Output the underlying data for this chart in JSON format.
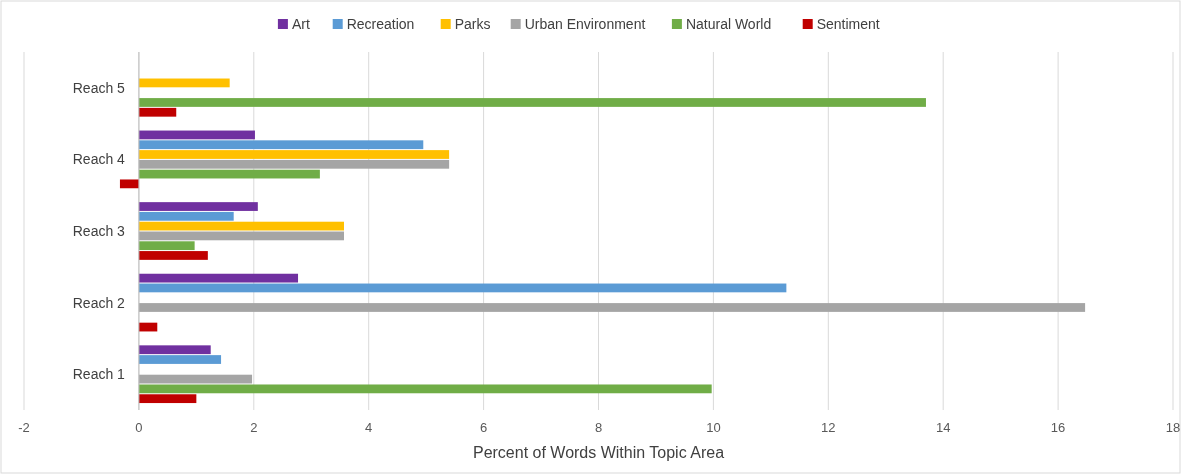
{
  "chart_data": {
    "type": "bar",
    "orientation": "horizontal",
    "xlabel": "Percent of Words Within Topic Area",
    "categories": [
      "Reach 5",
      "Reach 4",
      "Reach 3",
      "Reach 2",
      "Reach 1"
    ],
    "series": [
      {
        "name": "Art",
        "color": "#7030a0",
        "values": [
          null,
          2.02,
          2.07,
          2.77,
          1.25
        ]
      },
      {
        "name": "Recreation",
        "color": "#5b9bd5",
        "values": [
          null,
          4.95,
          1.65,
          11.27,
          1.43
        ]
      },
      {
        "name": "Parks",
        "color": "#ffc000",
        "values": [
          1.58,
          5.4,
          3.57,
          null,
          null
        ]
      },
      {
        "name": "Urban Environment",
        "color": "#a5a5a5",
        "values": [
          null,
          5.4,
          3.57,
          16.47,
          1.97
        ]
      },
      {
        "name": "Natural World",
        "color": "#70ad47",
        "values": [
          13.7,
          3.15,
          0.97,
          null,
          9.97
        ]
      },
      {
        "name": "Sentiment",
        "color": "#c00000",
        "values": [
          0.65,
          -0.33,
          1.2,
          0.32,
          1.0
        ]
      }
    ],
    "xlim": [
      -2,
      18
    ],
    "xticks": [
      -2,
      0,
      2,
      4,
      6,
      8,
      10,
      12,
      14,
      16,
      18
    ],
    "grid": "x",
    "legend": "top"
  }
}
